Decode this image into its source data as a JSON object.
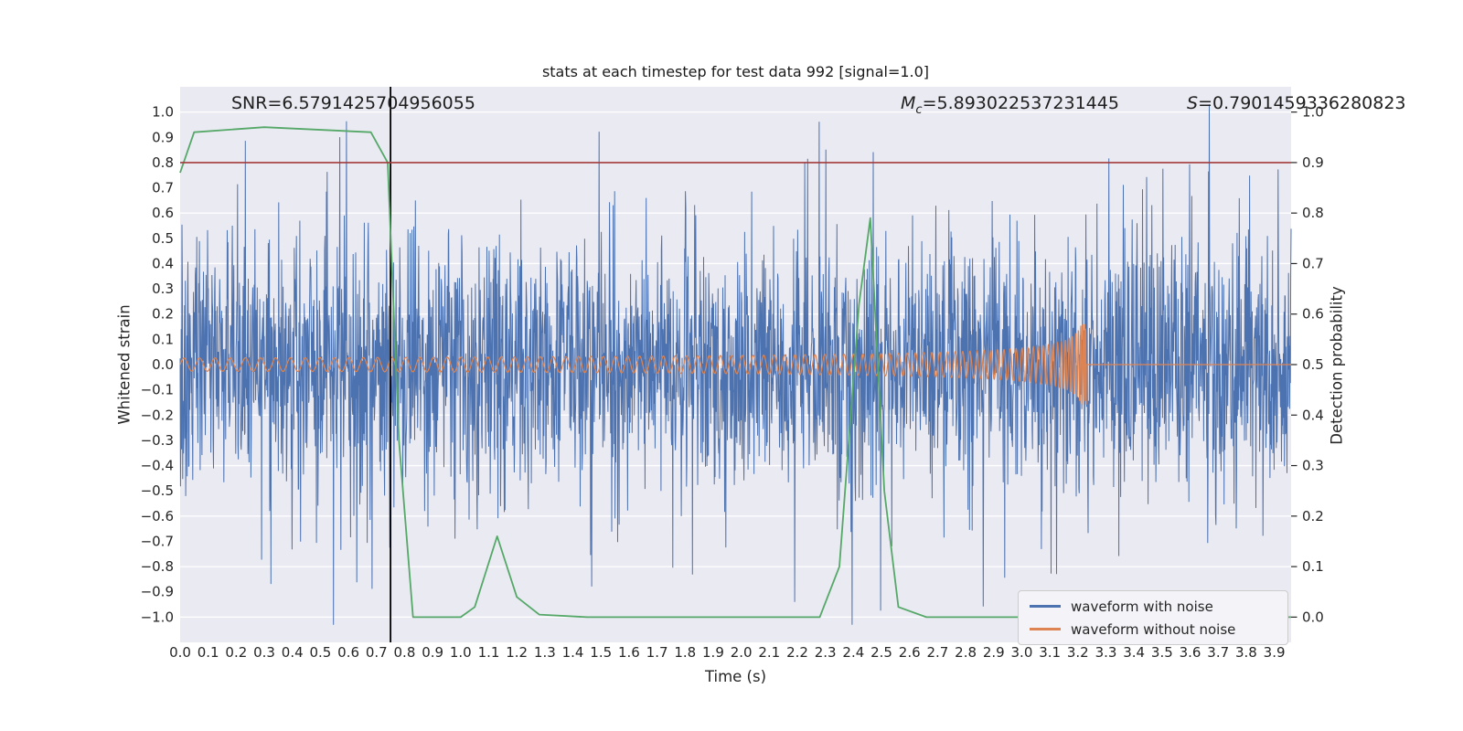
{
  "chart_data": {
    "type": "line",
    "title": "stats at each timestep for test data 992 [signal=1.0]",
    "xlabel": "Time (s)",
    "ylabel_left": "Whitened strain",
    "ylabel_right": "Detection probability",
    "xlim": [
      0,
      3.96
    ],
    "ylim_left": [
      -1.1,
      1.1
    ],
    "ylim_right": [
      -0.05,
      1.05
    ],
    "xticks": {
      "min": 0.0,
      "max": 3.9,
      "step": 0.1,
      "decimals": 1
    },
    "yticks_left": {
      "min": -1.0,
      "max": 1.0,
      "step": 0.1,
      "decimals": 1
    },
    "yticks_right": {
      "min": 0.0,
      "max": 1.0,
      "step": 0.1,
      "decimals": 1
    },
    "background": "#eaeaf2",
    "grid_color": "#ffffff",
    "annotations": {
      "snr": "SNR=6.5791425704956055",
      "mc_symbol": "M",
      "mc_sub": "c",
      "mc_value": "=5.893022537231445",
      "s_symbol": "S",
      "s_value": "=0.7901459336280823"
    },
    "threshold_line": {
      "value": 0.9,
      "axis": "right",
      "color": "#a13b3b"
    },
    "event_line": {
      "x": 0.75,
      "color": "#000000"
    },
    "series": [
      {
        "name": "waveform with noise",
        "color": "#4c72b0",
        "axis": "left",
        "kind": "noise",
        "gen": {
          "seed": 992,
          "n": 3000,
          "sigma": 0.24,
          "spike_sigma": 0.45,
          "spike_frac": 0.1,
          "clip": 1.03
        }
      },
      {
        "name": "waveform without noise",
        "color": "#dd8452",
        "axis": "left",
        "kind": "chirp",
        "gen": {
          "n": 6000,
          "a0": 0.026,
          "amp_pow": 0.35,
          "amp_max": 0.16,
          "f0": 18,
          "freq_pow": 0.375,
          "f_max": 280,
          "t_merger": 3.23,
          "post_value": 0.0
        }
      },
      {
        "name": "detection probability",
        "color": "#55a868",
        "axis": "right",
        "kind": "points",
        "points": [
          [
            0,
            0.88
          ],
          [
            0.05,
            0.96
          ],
          [
            0.3,
            0.97
          ],
          [
            0.68,
            0.96
          ],
          [
            0.74,
            0.9
          ],
          [
            0.78,
            0.35
          ],
          [
            0.83,
            0.0
          ],
          [
            1.0,
            0.0
          ],
          [
            1.05,
            0.02
          ],
          [
            1.13,
            0.16
          ],
          [
            1.2,
            0.04
          ],
          [
            1.28,
            0.005
          ],
          [
            1.45,
            0.0
          ],
          [
            2.28,
            0.0
          ],
          [
            2.35,
            0.1
          ],
          [
            2.42,
            0.62
          ],
          [
            2.46,
            0.79
          ],
          [
            2.51,
            0.25
          ],
          [
            2.56,
            0.02
          ],
          [
            2.66,
            0.0
          ],
          [
            3.96,
            0.0
          ]
        ]
      }
    ],
    "legend": [
      {
        "label": "waveform with noise",
        "color": "#4c72b0"
      },
      {
        "label": "waveform without noise",
        "color": "#dd8452"
      }
    ]
  }
}
